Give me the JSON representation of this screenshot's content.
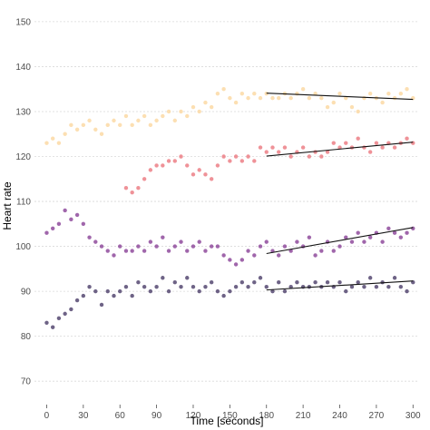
{
  "chart_data": {
    "type": "scatter",
    "xlabel": "Time [seconds]",
    "ylabel": "Heart rate",
    "xlim": [
      -10,
      305
    ],
    "ylim": [
      66,
      152
    ],
    "x_ticks": [
      0,
      30,
      60,
      90,
      120,
      150,
      180,
      210,
      240,
      270,
      300
    ],
    "y_ticks": [
      70,
      80,
      90,
      100,
      110,
      120,
      130,
      140,
      150
    ],
    "grid": "horizontal-dotted",
    "legend": "none",
    "series": [
      {
        "color": "#fcd9a5",
        "points": [
          [
            0,
            123
          ],
          [
            5,
            124
          ],
          [
            10,
            123
          ],
          [
            15,
            125
          ],
          [
            20,
            127
          ],
          [
            25,
            126
          ],
          [
            30,
            127
          ],
          [
            35,
            128
          ],
          [
            40,
            126
          ],
          [
            45,
            125
          ],
          [
            50,
            127
          ],
          [
            55,
            128
          ],
          [
            60,
            127
          ],
          [
            65,
            129
          ],
          [
            70,
            127
          ],
          [
            75,
            128
          ],
          [
            80,
            129
          ],
          [
            85,
            127
          ],
          [
            90,
            128
          ],
          [
            95,
            129
          ],
          [
            100,
            130
          ],
          [
            105,
            128
          ],
          [
            110,
            130
          ],
          [
            115,
            129
          ],
          [
            120,
            131
          ],
          [
            125,
            130
          ],
          [
            130,
            132
          ],
          [
            135,
            131
          ],
          [
            140,
            134
          ],
          [
            145,
            135
          ],
          [
            150,
            133
          ],
          [
            155,
            132
          ],
          [
            160,
            134
          ],
          [
            165,
            133
          ],
          [
            170,
            134
          ],
          [
            175,
            133
          ],
          [
            180,
            134
          ],
          [
            185,
            133
          ],
          [
            190,
            133
          ],
          [
            195,
            134
          ],
          [
            200,
            133
          ],
          [
            205,
            134
          ],
          [
            210,
            135
          ],
          [
            215,
            133
          ],
          [
            220,
            134
          ],
          [
            225,
            133
          ],
          [
            230,
            131
          ],
          [
            235,
            132
          ],
          [
            240,
            134
          ],
          [
            245,
            133
          ],
          [
            250,
            131
          ],
          [
            255,
            130
          ],
          [
            260,
            133
          ],
          [
            265,
            134
          ],
          [
            270,
            133
          ],
          [
            275,
            132
          ],
          [
            280,
            134
          ],
          [
            285,
            133
          ],
          [
            290,
            134
          ],
          [
            295,
            135
          ],
          [
            300,
            133
          ]
        ],
        "trend": [
          [
            180,
            134.1
          ],
          [
            300,
            132.7
          ]
        ]
      },
      {
        "color": "#ec7f86",
        "points": [
          [
            65,
            113
          ],
          [
            70,
            112
          ],
          [
            75,
            113
          ],
          [
            80,
            115
          ],
          [
            85,
            117
          ],
          [
            90,
            118
          ],
          [
            95,
            118
          ],
          [
            100,
            119
          ],
          [
            105,
            119
          ],
          [
            110,
            120
          ],
          [
            115,
            118
          ],
          [
            120,
            116
          ],
          [
            125,
            117
          ],
          [
            130,
            116
          ],
          [
            135,
            115
          ],
          [
            140,
            118
          ],
          [
            145,
            120
          ],
          [
            150,
            119
          ],
          [
            155,
            120
          ],
          [
            160,
            119
          ],
          [
            165,
            120
          ],
          [
            170,
            119
          ],
          [
            175,
            122
          ],
          [
            180,
            121
          ],
          [
            185,
            122
          ],
          [
            190,
            121
          ],
          [
            195,
            122
          ],
          [
            200,
            120
          ],
          [
            205,
            121
          ],
          [
            210,
            122
          ],
          [
            215,
            120
          ],
          [
            220,
            121
          ],
          [
            225,
            120
          ],
          [
            230,
            121
          ],
          [
            235,
            123
          ],
          [
            240,
            122
          ],
          [
            245,
            123
          ],
          [
            250,
            122
          ],
          [
            255,
            124
          ],
          [
            260,
            122
          ],
          [
            265,
            121
          ],
          [
            270,
            123
          ],
          [
            275,
            122
          ],
          [
            280,
            123
          ],
          [
            285,
            122
          ],
          [
            290,
            123
          ],
          [
            295,
            124
          ],
          [
            300,
            123
          ]
        ],
        "trend": [
          [
            180,
            120.1
          ],
          [
            300,
            123.2
          ]
        ]
      },
      {
        "color": "#8f4b9c",
        "points": [
          [
            0,
            103
          ],
          [
            5,
            104
          ],
          [
            10,
            105
          ],
          [
            15,
            108
          ],
          [
            20,
            106
          ],
          [
            25,
            107
          ],
          [
            30,
            105
          ],
          [
            35,
            102
          ],
          [
            40,
            101
          ],
          [
            45,
            100
          ],
          [
            50,
            99
          ],
          [
            55,
            98
          ],
          [
            60,
            100
          ],
          [
            65,
            99
          ],
          [
            70,
            99
          ],
          [
            75,
            100
          ],
          [
            80,
            99
          ],
          [
            85,
            101
          ],
          [
            90,
            100
          ],
          [
            95,
            102
          ],
          [
            100,
            99
          ],
          [
            105,
            100
          ],
          [
            110,
            101
          ],
          [
            115,
            99
          ],
          [
            120,
            100
          ],
          [
            125,
            101
          ],
          [
            130,
            99
          ],
          [
            135,
            100
          ],
          [
            140,
            100
          ],
          [
            145,
            98
          ],
          [
            150,
            97
          ],
          [
            155,
            96
          ],
          [
            160,
            97
          ],
          [
            165,
            99
          ],
          [
            170,
            98
          ],
          [
            175,
            100
          ],
          [
            180,
            101
          ],
          [
            185,
            99
          ],
          [
            190,
            98
          ],
          [
            195,
            100
          ],
          [
            200,
            99
          ],
          [
            205,
            101
          ],
          [
            210,
            100
          ],
          [
            215,
            102
          ],
          [
            220,
            98
          ],
          [
            225,
            99
          ],
          [
            230,
            101
          ],
          [
            235,
            99
          ],
          [
            240,
            100
          ],
          [
            245,
            102
          ],
          [
            250,
            101
          ],
          [
            255,
            103
          ],
          [
            260,
            101
          ],
          [
            265,
            102
          ],
          [
            270,
            103
          ],
          [
            275,
            101
          ],
          [
            280,
            104
          ],
          [
            285,
            103
          ],
          [
            290,
            102
          ],
          [
            295,
            103
          ],
          [
            300,
            104
          ]
        ],
        "trend": [
          [
            180,
            98.4
          ],
          [
            300,
            104.2
          ]
        ]
      },
      {
        "color": "#554871",
        "points": [
          [
            0,
            83
          ],
          [
            5,
            82
          ],
          [
            10,
            84
          ],
          [
            15,
            85
          ],
          [
            20,
            86
          ],
          [
            25,
            88
          ],
          [
            30,
            89
          ],
          [
            35,
            91
          ],
          [
            40,
            90
          ],
          [
            45,
            87
          ],
          [
            50,
            90
          ],
          [
            55,
            89
          ],
          [
            60,
            90
          ],
          [
            65,
            91
          ],
          [
            70,
            89
          ],
          [
            75,
            92
          ],
          [
            80,
            91
          ],
          [
            85,
            90
          ],
          [
            90,
            91
          ],
          [
            95,
            93
          ],
          [
            100,
            90
          ],
          [
            105,
            92
          ],
          [
            110,
            91
          ],
          [
            115,
            93
          ],
          [
            120,
            91
          ],
          [
            125,
            90
          ],
          [
            130,
            91
          ],
          [
            135,
            92
          ],
          [
            140,
            90
          ],
          [
            145,
            89
          ],
          [
            150,
            90
          ],
          [
            155,
            91
          ],
          [
            160,
            92
          ],
          [
            165,
            91
          ],
          [
            170,
            92
          ],
          [
            175,
            93
          ],
          [
            180,
            91
          ],
          [
            185,
            90
          ],
          [
            190,
            92
          ],
          [
            195,
            90
          ],
          [
            200,
            91
          ],
          [
            205,
            92
          ],
          [
            210,
            91
          ],
          [
            215,
            91
          ],
          [
            220,
            92
          ],
          [
            225,
            91
          ],
          [
            230,
            92
          ],
          [
            235,
            91
          ],
          [
            240,
            92
          ],
          [
            245,
            90
          ],
          [
            250,
            91
          ],
          [
            255,
            92
          ],
          [
            260,
            91
          ],
          [
            265,
            93
          ],
          [
            270,
            91
          ],
          [
            275,
            92
          ],
          [
            280,
            91
          ],
          [
            285,
            93
          ],
          [
            290,
            91
          ],
          [
            295,
            90
          ],
          [
            300,
            92
          ]
        ],
        "trend": [
          [
            180,
            90.3
          ],
          [
            300,
            92.3
          ]
        ]
      }
    ]
  }
}
